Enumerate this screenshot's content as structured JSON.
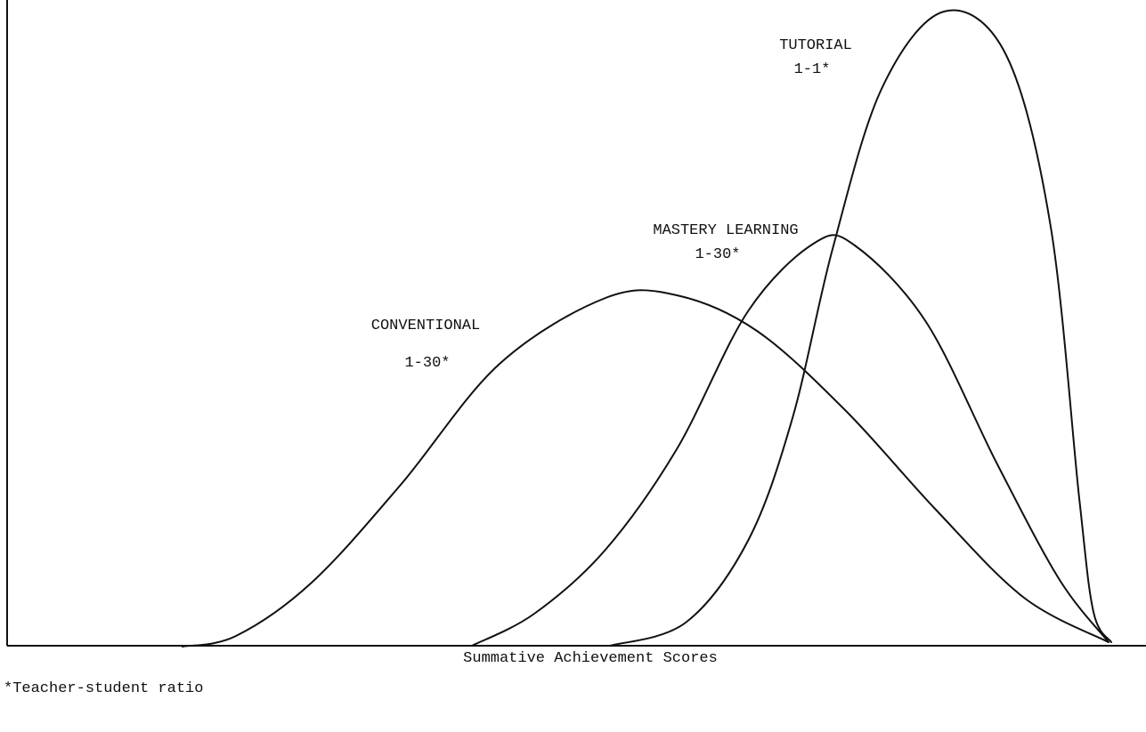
{
  "chart_data": {
    "type": "distribution-sketch",
    "x_label": "Summative Achievement Scores",
    "footnote": "*Teacher-student ratio",
    "series": [
      {
        "name": "CONVENTIONAL",
        "ratio": "1-30*"
      },
      {
        "name": "MASTERY LEARNING",
        "ratio": "1-30*"
      },
      {
        "name": "TUTORIAL",
        "ratio": "1-1*"
      }
    ]
  }
}
